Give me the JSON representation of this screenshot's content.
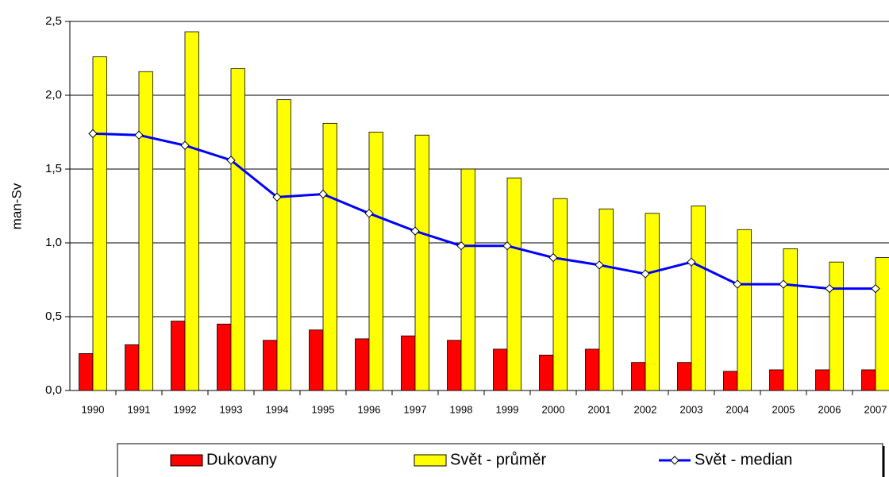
{
  "chart_data": {
    "type": "bar_line",
    "y_label": "man-Sv",
    "categories": [
      "1990",
      "1991",
      "1992",
      "1993",
      "1994",
      "1995",
      "1996",
      "1997",
      "1998",
      "1999",
      "2000",
      "2001",
      "2002",
      "2003",
      "2004",
      "2005",
      "2006",
      "2007"
    ],
    "series": [
      {
        "name": "Dukovany",
        "type": "bar",
        "color": "#ff0000",
        "values": [
          0.25,
          0.31,
          0.47,
          0.45,
          0.34,
          0.41,
          0.35,
          0.37,
          0.34,
          0.28,
          0.24,
          0.28,
          0.19,
          0.19,
          0.13,
          0.14,
          0.14,
          0.14
        ]
      },
      {
        "name": "Svět - průměr",
        "type": "bar",
        "color": "#ffff00",
        "values": [
          2.26,
          2.16,
          2.43,
          2.18,
          1.97,
          1.81,
          1.75,
          1.73,
          1.5,
          1.44,
          1.3,
          1.23,
          1.2,
          1.25,
          1.09,
          0.96,
          0.87,
          0.9
        ]
      },
      {
        "name": "Svět - median",
        "type": "line",
        "color": "#0000ff",
        "values": [
          1.74,
          1.73,
          1.66,
          1.56,
          1.31,
          1.33,
          1.2,
          1.08,
          0.98,
          0.98,
          0.9,
          0.85,
          0.79,
          0.87,
          0.72,
          0.72,
          0.69,
          0.69
        ]
      }
    ],
    "ylim": [
      0,
      2.5
    ],
    "yticks": [
      {
        "value": 0,
        "label": "0,0"
      },
      {
        "value": 0.5,
        "label": "0,5"
      },
      {
        "value": 1,
        "label": "1,0"
      },
      {
        "value": 1.5,
        "label": "1,5"
      },
      {
        "value": 2,
        "label": "2,0"
      },
      {
        "value": 2.5,
        "label": "2,5"
      }
    ],
    "grid": true,
    "legend": "bottom"
  }
}
